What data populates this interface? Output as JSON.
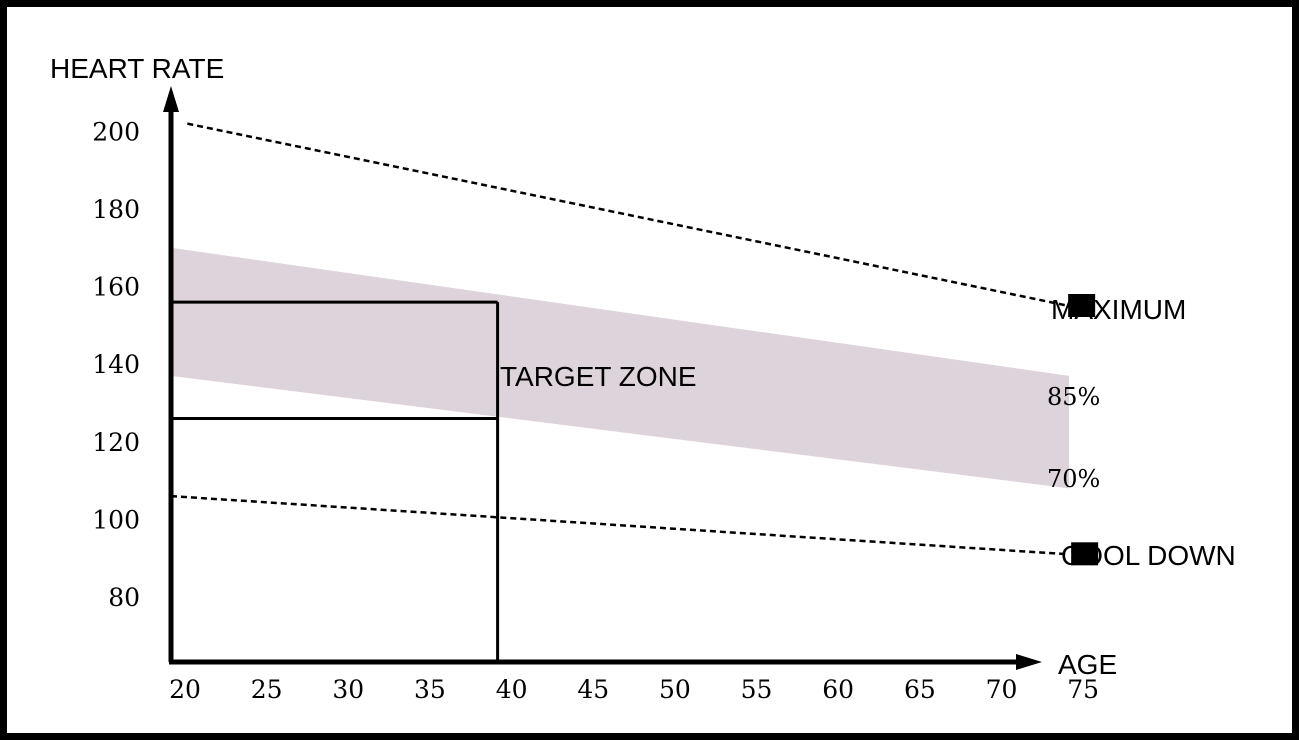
{
  "chart_data": {
    "type": "area",
    "title": "",
    "xlabel": "AGE",
    "ylabel": "HEART RATE",
    "x_ticks": [
      20,
      25,
      30,
      35,
      40,
      45,
      50,
      55,
      60,
      65,
      70,
      75
    ],
    "y_ticks": [
      80,
      100,
      120,
      140,
      160,
      180,
      200
    ],
    "xlim": [
      20,
      75
    ],
    "ylim": [
      65,
      200
    ],
    "series": [
      {
        "name": "MAXIMUM",
        "style": "dashed",
        "x": [
          21,
          75
        ],
        "y": [
          202,
          155
        ]
      },
      {
        "name": "COOL DOWN",
        "style": "dashed",
        "x": [
          20,
          75
        ],
        "y": [
          106,
          91
        ]
      }
    ],
    "target_band": {
      "label": "TARGET ZONE",
      "x": [
        20,
        75
      ],
      "upper": [
        170,
        137
      ],
      "lower": [
        137,
        108
      ],
      "color": "#dcd4da",
      "upper_label": "85%",
      "lower_label": "70%"
    },
    "example_box": {
      "x": [
        20,
        40
      ],
      "upper": 156,
      "lower": 126
    },
    "grid": false,
    "legend": "right",
    "colors": {
      "line": "#000000",
      "band": "#dcd4da",
      "frame": "#000000"
    }
  }
}
